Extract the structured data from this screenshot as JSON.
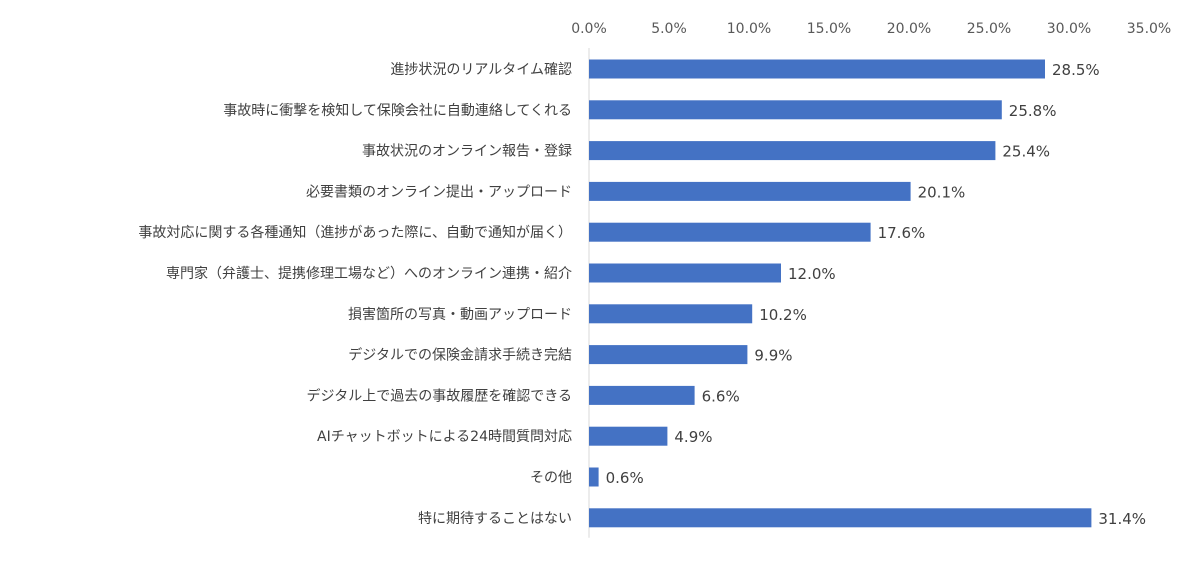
{
  "chart_data": {
    "type": "bar",
    "orientation": "horizontal",
    "categories": [
      "進捗状況のリアルタイム確認",
      "事故時に衝撃を検知して保険会社に自動連絡してくれる",
      "事故状況のオンライン報告・登録",
      "必要書類のオンライン提出・アップロード",
      "事故対応に関する各種通知（進捗があった際に、自動で通知が届く）",
      "専門家（弁護士、提携修理工場など）へのオンライン連携・紹介",
      "損害箇所の写真・動画アップロード",
      "デジタルでの保険金請求手続き完結",
      "デジタル上で過去の事故履歴を確認できる",
      "AIチャットボットによる24時間質問対応",
      "その他",
      "特に期待することはない"
    ],
    "values": [
      28.5,
      25.8,
      25.4,
      20.1,
      17.6,
      12.0,
      10.2,
      9.9,
      6.6,
      4.9,
      0.6,
      31.4
    ],
    "data_labels": [
      "28.5%",
      "25.8%",
      "25.4%",
      "20.1%",
      "17.6%",
      "12.0%",
      "10.2%",
      "9.9%",
      "6.6%",
      "4.9%",
      "0.6%",
      "31.4%"
    ],
    "xlim": [
      0,
      35
    ],
    "x_ticks": [
      0,
      5,
      10,
      15,
      20,
      25,
      30,
      35
    ],
    "x_tick_labels": [
      "0.0%",
      "5.0%",
      "10.0%",
      "15.0%",
      "20.0%",
      "25.0%",
      "30.0%",
      "35.0%"
    ],
    "x_axis_position": "top",
    "grid": false,
    "legend": "none",
    "title": "",
    "xlabel": "",
    "ylabel": "",
    "bar_color": "#4472C4",
    "text_color": "#404040",
    "axis_color": "#D9D9D9"
  }
}
